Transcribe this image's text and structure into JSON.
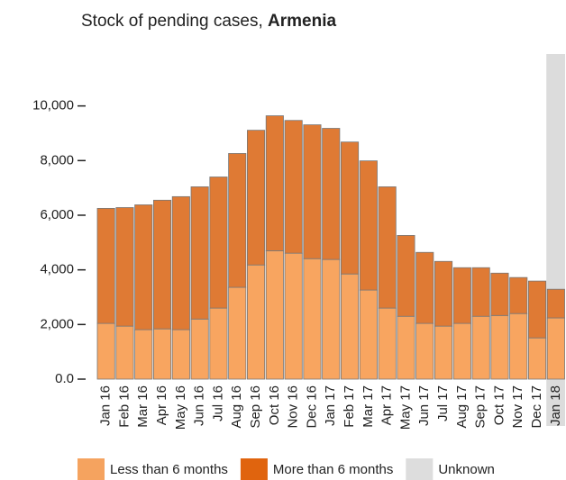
{
  "chart_data": {
    "type": "stacked_bar",
    "title": "Stock of pending cases,",
    "title_country": "Armenia",
    "categories": [
      "Jan 16",
      "Feb 16",
      "Mar 16",
      "Apr 16",
      "May 16",
      "Jun 16",
      "Jul 16",
      "Aug 16",
      "Sep 16",
      "Oct 16",
      "Nov 16",
      "Dec 16",
      "Jan 17",
      "Feb 17",
      "Mar 17",
      "Apr 17",
      "May 17",
      "Jun 17",
      "Jul 17",
      "Aug 17",
      "Sep 17",
      "Oct 17",
      "Nov 17",
      "Dec 17",
      "Jan 18"
    ],
    "series": [
      {
        "name": "Less than 6 months",
        "color": "#f8a560",
        "legend_color": "#f5a35f",
        "values": [
          2040,
          1940,
          1810,
          1840,
          1810,
          2200,
          2600,
          3360,
          4180,
          4700,
          4610,
          4410,
          4380,
          3850,
          3260,
          2600,
          2300,
          2040,
          1940,
          2040,
          2300,
          2330,
          2400,
          1510,
          2240
        ]
      },
      {
        "name": "More than 6 months",
        "color": "#df7a34",
        "legend_color": "#e0640e",
        "values": [
          4210,
          4340,
          4570,
          4710,
          4870,
          4840,
          4800,
          4900,
          4930,
          4940,
          4860,
          4900,
          4800,
          4830,
          4730,
          4440,
          2960,
          2600,
          2370,
          2040,
          1780,
          1550,
          1320,
          2080,
          1050
        ]
      },
      {
        "name": "Unknown",
        "color": "#dddddd",
        "legend_color": "#dddddd",
        "values": [
          null,
          null,
          null,
          null,
          null,
          null,
          null,
          null,
          null,
          null,
          null,
          null,
          null,
          null,
          null,
          null,
          null,
          null,
          null,
          null,
          null,
          null,
          null,
          null,
          null
        ]
      }
    ],
    "ylim": [
      0,
      11900
    ],
    "yticks": [
      {
        "value": 0,
        "label": "0.0"
      },
      {
        "value": 2000,
        "label": "2,000"
      },
      {
        "value": 4000,
        "label": "4,000"
      },
      {
        "value": 6000,
        "label": "6,000"
      },
      {
        "value": 8000,
        "label": "8,000"
      },
      {
        "value": 10000,
        "label": "10,000"
      }
    ],
    "highlight_index": 24
  }
}
